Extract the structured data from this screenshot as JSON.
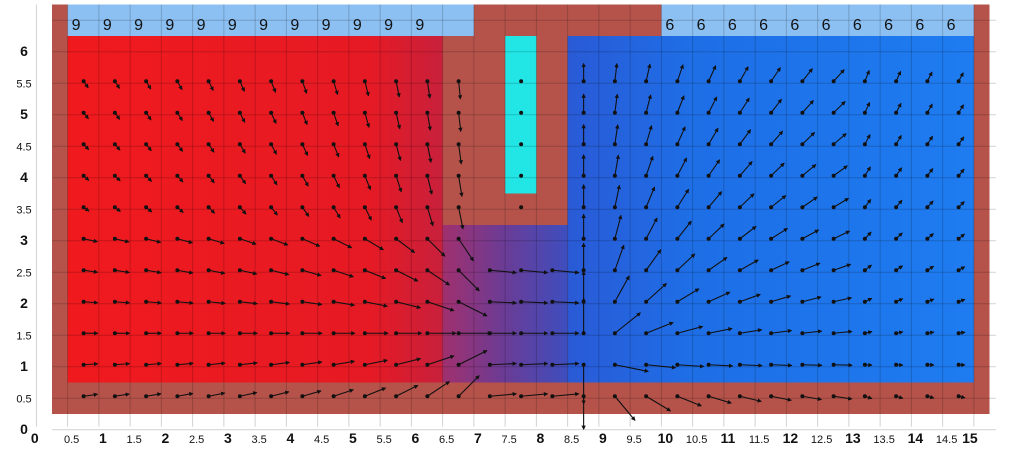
{
  "chart_data": {
    "type": "heatmap",
    "description_of_content": "",
    "x_axis": {
      "range": [
        0,
        15
      ],
      "tick_labels": [
        "0",
        "0.5",
        "1",
        "1.5",
        "2",
        "2.5",
        "3",
        "3.5",
        "4",
        "4.5",
        "5",
        "5.5",
        "6",
        "6.5",
        "7",
        "7.5",
        "8",
        "8.5",
        "9",
        "9.5",
        "10",
        "10.5",
        "11",
        "11.5",
        "12",
        "12.5",
        "13",
        "13.5",
        "14",
        "14.5",
        "15"
      ]
    },
    "y_axis": {
      "range": [
        0,
        6
      ],
      "tick_labels": [
        "0",
        "0.5",
        "1",
        "1.5",
        "2",
        "2.5",
        "3",
        "3.5",
        "4",
        "4.5",
        "5",
        "5.5",
        "6"
      ]
    },
    "regions": [
      {
        "kind": "boundary",
        "x": [
          0,
          15
        ],
        "y": [
          0,
          6.5
        ],
        "color": "#b5534a"
      },
      {
        "kind": "left-domain",
        "x": [
          0.5,
          6.5
        ],
        "y": [
          0.5,
          6
        ],
        "color": "#e8141e"
      },
      {
        "kind": "right-domain",
        "x": [
          8.5,
          15
        ],
        "y": [
          0.5,
          6
        ],
        "color": "#1e6ee6"
      },
      {
        "kind": "channel",
        "x": [
          6.5,
          8.5
        ],
        "y": [
          0.5,
          3
        ],
        "color": "#6a3c96"
      },
      {
        "kind": "source-column",
        "x": [
          7.5,
          8
        ],
        "y": [
          3.5,
          6
        ],
        "color": "#22e6e6"
      },
      {
        "kind": "left-top-band",
        "x": [
          0.5,
          7
        ],
        "y": [
          6,
          6.5
        ],
        "color": "#8cc0f2"
      },
      {
        "kind": "right-top-band",
        "x": [
          10,
          15
        ],
        "y": [
          6,
          6.5
        ],
        "color": "#8cc0f2"
      }
    ],
    "top_labels_left": {
      "text": "9",
      "x": [
        0.5,
        1,
        1.5,
        2,
        2.5,
        3,
        3.5,
        4,
        4.5,
        5,
        5.5,
        6
      ]
    },
    "top_labels_right": {
      "text": "6",
      "x": [
        10,
        10.5,
        11,
        11.5,
        12,
        12.5,
        13,
        13.5,
        14,
        14.5
      ]
    },
    "grid": true,
    "vectors": "velocity arrows on a 0.5 grid flowing from left domain through channel into right domain"
  }
}
